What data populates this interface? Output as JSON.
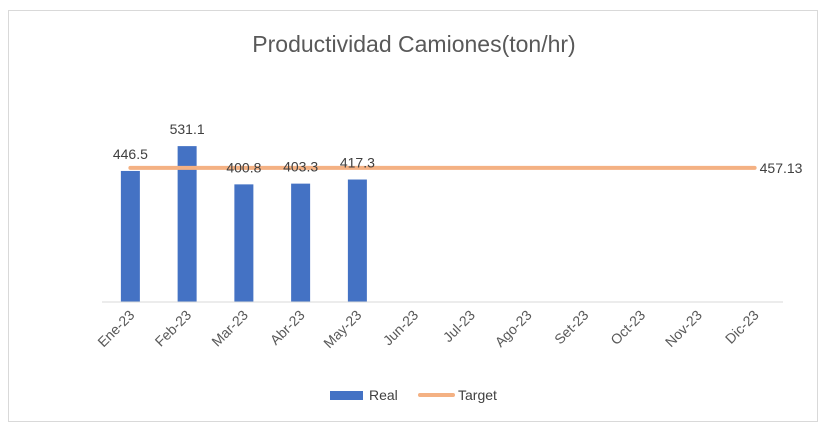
{
  "chart_data": {
    "type": "bar",
    "title": "Productividad Camiones(ton/hr)",
    "categories": [
      "Ene-23",
      "Feb-23",
      "Mar-23",
      "Abr-23",
      "May-23",
      "Jun-23",
      "Jul-23",
      "Ago-23",
      "Set-23",
      "Oct-23",
      "Nov-23",
      "Dic-23"
    ],
    "series": [
      {
        "name": "Real",
        "type": "bar",
        "color": "#4472c4",
        "values": [
          446.5,
          531.1,
          400.8,
          403.3,
          417.3,
          null,
          null,
          null,
          null,
          null,
          null,
          null
        ],
        "labels": [
          "446.5",
          "531.1",
          "400.8",
          "403.3",
          "417.3"
        ]
      },
      {
        "name": "Target",
        "type": "line",
        "color": "#f4b183",
        "value": 457.13,
        "label": "457.13"
      }
    ],
    "ylim": [
      0,
      600
    ],
    "grid": false,
    "legend": "bottom"
  }
}
